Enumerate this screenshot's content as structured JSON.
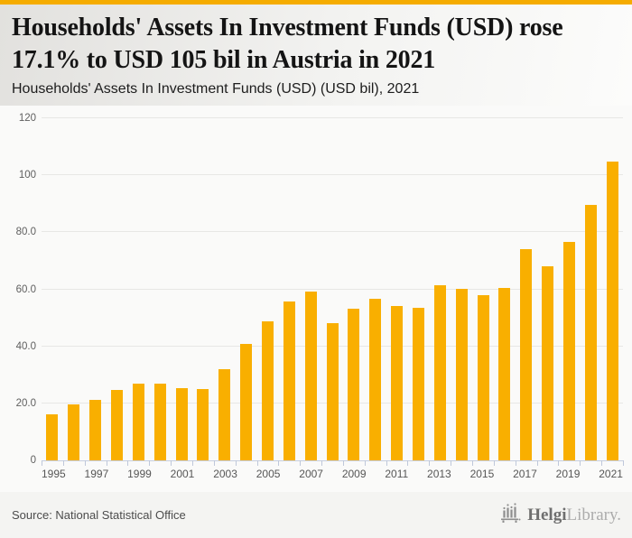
{
  "header": {
    "title": "Households' Assets In Investment Funds (USD) rose 17.1% to USD 105 bil in Austria in 2021",
    "subtitle": "Households' Assets In Investment Funds (USD) (USD bil), 2021"
  },
  "footer": {
    "source": "Source: National Statistical Office",
    "logo": {
      "icon": "helgi-bars-icon",
      "brand_primary": "Helgi",
      "brand_secondary": "Library."
    }
  },
  "colors": {
    "accent_strip": "#F5AC00",
    "bar": "#F9AF00",
    "gridline": "#E7E7E5",
    "axis": "#C7CFE0",
    "background": "#FAFAF9",
    "header_gradient_left": "#E2E1DE",
    "header_gradient_right": "#FCFCFB"
  },
  "chart_data": {
    "type": "bar",
    "title": "Households' Assets In Investment Funds (USD) (USD bil), 2021",
    "xlabel": "",
    "ylabel": "",
    "categories": [
      "1995",
      "1996",
      "1997",
      "1998",
      "1999",
      "2000",
      "2001",
      "2002",
      "2003",
      "2004",
      "2005",
      "2006",
      "2007",
      "2008",
      "2009",
      "2010",
      "2011",
      "2012",
      "2013",
      "2014",
      "2015",
      "2016",
      "2017",
      "2018",
      "2019",
      "2020",
      "2021"
    ],
    "values": [
      16.0,
      19.5,
      21.2,
      24.6,
      26.9,
      26.8,
      25.2,
      24.9,
      31.9,
      41.0,
      48.8,
      55.8,
      59.3,
      48.1,
      53.1,
      56.6,
      54.2,
      53.6,
      61.3,
      60.1,
      58.0,
      60.4,
      74.1,
      68.1,
      76.6,
      89.5,
      104.8
    ],
    "ylim": [
      0,
      120
    ],
    "yticks": [
      {
        "value": 0,
        "label": "0"
      },
      {
        "value": 20,
        "label": "20.0"
      },
      {
        "value": 40,
        "label": "40.0"
      },
      {
        "value": 60,
        "label": "60.0"
      },
      {
        "value": 80,
        "label": "80.0"
      },
      {
        "value": 100,
        "label": "100"
      },
      {
        "value": 120,
        "label": "120"
      }
    ],
    "xtick_labels": [
      "1995",
      "1997",
      "1999",
      "2001",
      "2003",
      "2005",
      "2007",
      "2009",
      "2011",
      "2013",
      "2015",
      "2017",
      "2019",
      "2021"
    ],
    "grid": true,
    "legend": false,
    "bar_color": "#F9AF00"
  }
}
